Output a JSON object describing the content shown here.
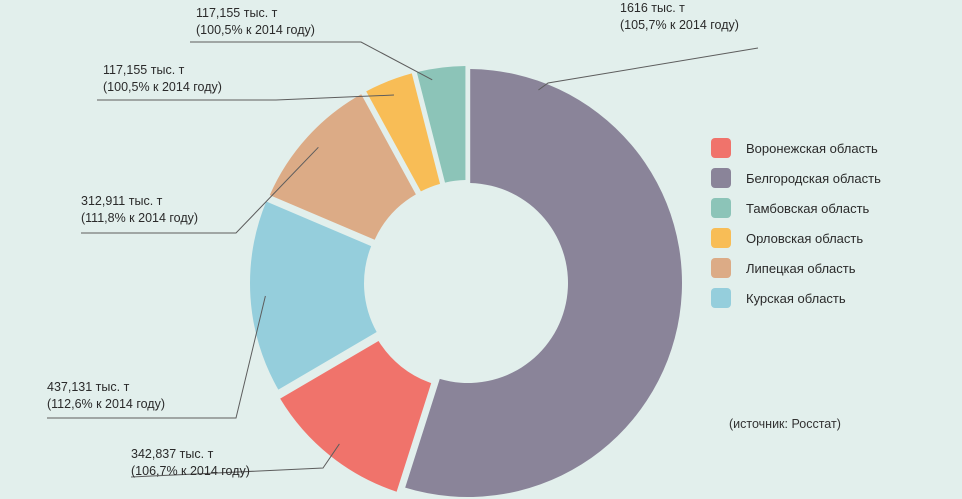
{
  "chart_data": {
    "type": "pie",
    "donut": true,
    "source": "(источник: Росстат)",
    "slices": [
      {
        "name": "Белгородская область",
        "value": 1616,
        "value_label": "1616 тыс. т",
        "change_label": "(105,7% к 2014 году)",
        "color": "#8a8499"
      },
      {
        "name": "Воронежская область",
        "value": 342.837,
        "value_label": "342,837 тыс. т",
        "change_label": "(106,7%  к 2014 году)",
        "color": "#f0736b"
      },
      {
        "name": "Курская область",
        "value": 437.131,
        "value_label": "437,131 тыс. т",
        "change_label": "(112,6%  к 2014 году)",
        "color": "#95cedc"
      },
      {
        "name": "Липецкая область",
        "value": 312.911,
        "value_label": "312,911 тыс. т",
        "change_label": "(111,8% к 2014 году)",
        "color": "#dcab86"
      },
      {
        "name": "Орловская область",
        "value": 117.155,
        "value_label": "117,155 тыс. т",
        "change_label": "(100,5%  к 2014 году)",
        "color": "#f8bd56"
      },
      {
        "name": "Тамбовская область",
        "value": 117.155,
        "value_label": "117,155 тыс. т",
        "change_label": "(100,5%  к 2014 году)",
        "color": "#8cc4b8"
      }
    ],
    "legend_order": [
      "Воронежская область",
      "Белгородская область",
      "Тамбовская область",
      "Орловская область",
      "Липецкая область",
      "Курская область"
    ],
    "legend_position": "right"
  }
}
